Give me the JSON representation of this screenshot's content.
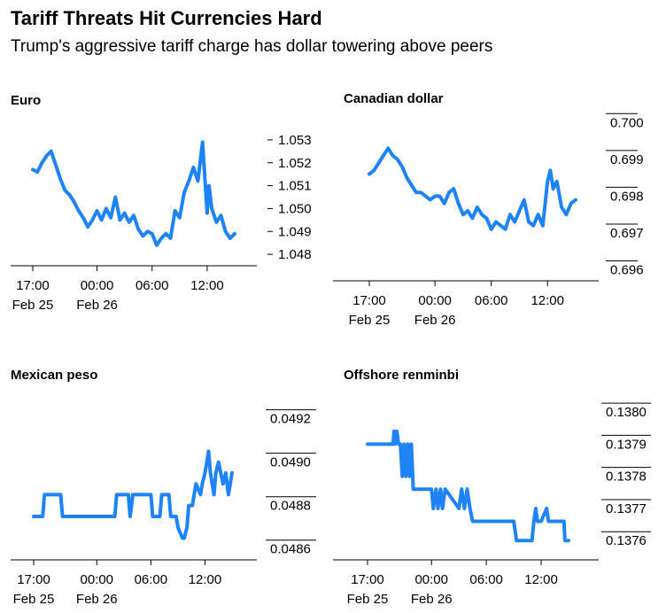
{
  "title": "Tariff Threats Hit Currencies Hard",
  "subtitle": "Trump's aggressive tariff charge has dollar towering above peers",
  "line_color": "#1e83f7",
  "x_ticks": [
    "17:00",
    "00:00",
    "06:00",
    "12:00"
  ],
  "x_date_labels": [
    "Feb 25",
    "Feb 26"
  ],
  "chart_data": [
    {
      "type": "line",
      "title": "Euro",
      "ylim": [
        1.0475,
        1.0535
      ],
      "y_axis_style": "dash",
      "yticks": [
        "1.053",
        "1.052",
        "1.051",
        "1.050",
        "1.049",
        "1.048"
      ],
      "ytick_values": [
        1.053,
        1.052,
        1.051,
        1.05,
        1.049,
        1.048
      ],
      "x_hours": [
        0,
        0.5,
        1,
        1.5,
        2,
        2.5,
        3,
        3.5,
        4,
        4.5,
        5,
        5.5,
        6,
        6.5,
        7,
        7.5,
        8,
        8.5,
        9,
        9.5,
        10,
        10.5,
        11,
        11.5,
        12,
        12.5,
        13,
        13.5,
        14,
        14.5,
        15,
        15.5,
        16,
        16.5,
        17,
        17.5,
        18,
        18.5,
        19,
        19.2,
        19.5,
        20,
        20.5,
        21,
        21.5,
        22
      ],
      "values": [
        1.0517,
        1.0516,
        1.052,
        1.0523,
        1.0525,
        1.0519,
        1.0513,
        1.0508,
        1.0506,
        1.0503,
        1.0499,
        1.0496,
        1.0492,
        1.0495,
        1.0499,
        1.0495,
        1.05,
        1.0496,
        1.0505,
        1.0495,
        1.0498,
        1.0494,
        1.0497,
        1.0491,
        1.0488,
        1.049,
        1.0489,
        1.0484,
        1.0487,
        1.0489,
        1.0487,
        1.0499,
        1.0496,
        1.0507,
        1.0512,
        1.0518,
        1.0512,
        1.0529,
        1.0498,
        1.051,
        1.05,
        1.0494,
        1.0497,
        1.049,
        1.0487,
        1.0489
      ]
    },
    {
      "type": "line",
      "title": "Canadian dollar",
      "ylim": [
        0.6957,
        0.7002
      ],
      "y_axis_style": "grid",
      "yticks": [
        "0.700",
        "0.699",
        "0.698",
        "0.697",
        "0.696"
      ],
      "ytick_values": [
        0.7,
        0.699,
        0.698,
        0.697,
        0.696
      ],
      "x_hours": [
        0,
        0.5,
        1,
        1.5,
        2,
        2.5,
        3,
        3.5,
        4,
        4.5,
        5,
        5.5,
        6,
        6.5,
        7,
        7.5,
        8,
        8.5,
        9,
        9.5,
        10,
        10.5,
        11,
        11.5,
        12,
        12.5,
        13,
        13.5,
        14,
        14.5,
        15,
        15.5,
        16,
        16.5,
        17,
        17.5,
        18,
        18.5,
        19,
        19.3,
        19.6,
        20,
        20.5,
        21,
        21.5,
        22
      ],
      "values": [
        0.6986,
        0.6987,
        0.6989,
        0.6991,
        0.6993,
        0.6991,
        0.699,
        0.6988,
        0.6985,
        0.6983,
        0.6981,
        0.6981,
        0.698,
        0.6979,
        0.698,
        0.698,
        0.6978,
        0.6981,
        0.6982,
        0.6978,
        0.6975,
        0.6976,
        0.6974,
        0.6977,
        0.6975,
        0.6974,
        0.6971,
        0.6973,
        0.6972,
        0.6971,
        0.6975,
        0.6973,
        0.6976,
        0.6979,
        0.6973,
        0.6972,
        0.6975,
        0.6972,
        0.6984,
        0.6987,
        0.6982,
        0.6984,
        0.6977,
        0.6975,
        0.6978,
        0.6979
      ]
    },
    {
      "type": "line",
      "title": "Mexican peso",
      "ylim": [
        0.04855,
        0.04928
      ],
      "y_axis_style": "grid",
      "yticks": [
        "0.0492",
        "0.0490",
        "0.0488",
        "0.0486"
      ],
      "ytick_values": [
        0.0492,
        0.049,
        0.0488,
        0.0486
      ],
      "x_hours": [
        0,
        1,
        1.2,
        2,
        3,
        3.2,
        5,
        9,
        9.2,
        10,
        10.5,
        10.7,
        11,
        11.2,
        13,
        13.2,
        14,
        14.2,
        15,
        15.2,
        15.8,
        16,
        16.5,
        16.7,
        17,
        17.2,
        17.6,
        17.8,
        18,
        18.5,
        18.7,
        19,
        19.4,
        19.6,
        20,
        20.2,
        20.5,
        21,
        21.3,
        21.6,
        22
      ],
      "values": [
        0.04875,
        0.04875,
        0.04885,
        0.04885,
        0.04885,
        0.04875,
        0.04875,
        0.04875,
        0.04885,
        0.04885,
        0.04885,
        0.04875,
        0.04885,
        0.04885,
        0.04885,
        0.04875,
        0.04875,
        0.04885,
        0.04885,
        0.04875,
        0.04875,
        0.0487,
        0.04865,
        0.04865,
        0.0487,
        0.0488,
        0.0488,
        0.04885,
        0.0489,
        0.04885,
        0.0489,
        0.04895,
        0.04905,
        0.04895,
        0.04885,
        0.04895,
        0.049,
        0.0489,
        0.04895,
        0.04885,
        0.04895
      ]
    },
    {
      "type": "line",
      "title": "Offshore renminbi",
      "ylim": [
        0.13754,
        0.13805
      ],
      "y_axis_style": "grid",
      "yticks": [
        "0.1380",
        "0.1379",
        "0.1378",
        "0.1377",
        "0.1376"
      ],
      "ytick_values": [
        0.138,
        0.1379,
        0.1378,
        0.1377,
        0.1376
      ],
      "x_hours": [
        0,
        2.8,
        2.9,
        3,
        3.2,
        3.4,
        3.6,
        3.8,
        4.0,
        4.2,
        4.4,
        4.6,
        4.8,
        5,
        7,
        7.2,
        7.5,
        7.7,
        8,
        8.2,
        8.5,
        10,
        10.3,
        10.6,
        10.9,
        11.2,
        11.5,
        15,
        16,
        16.3,
        18,
        18.2,
        18.4,
        18.6,
        19,
        19.6,
        19.8,
        20,
        21.5,
        21.6,
        22
      ],
      "values": [
        0.1379,
        0.1379,
        0.13794,
        0.1379,
        0.13794,
        0.1379,
        0.1379,
        0.1378,
        0.1379,
        0.1378,
        0.1379,
        0.1378,
        0.1379,
        0.13776,
        0.13776,
        0.1377,
        0.13776,
        0.1377,
        0.13776,
        0.1377,
        0.13776,
        0.1377,
        0.13776,
        0.1377,
        0.13776,
        0.1377,
        0.13766,
        0.13766,
        0.13766,
        0.1376,
        0.1376,
        0.13766,
        0.1377,
        0.13766,
        0.13766,
        0.1377,
        0.13766,
        0.13766,
        0.13766,
        0.1376,
        0.1376
      ]
    }
  ]
}
